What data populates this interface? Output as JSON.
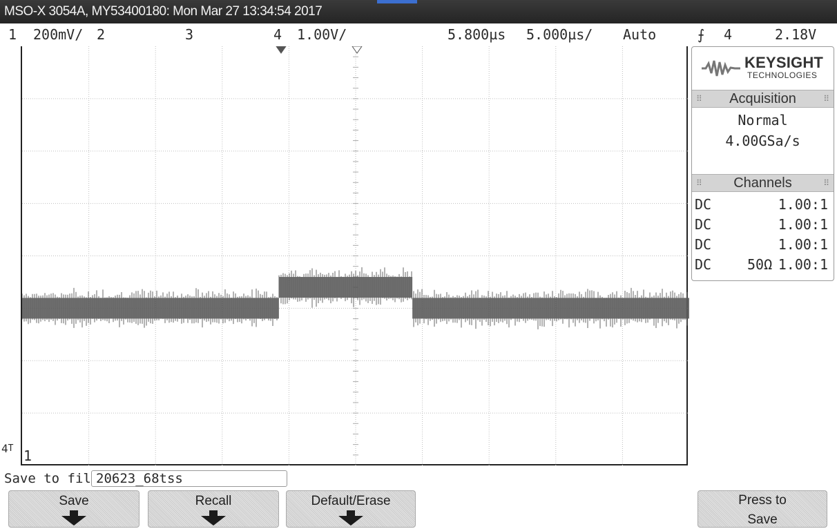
{
  "title_bar": {
    "text": "MSO-X 3054A, MY53400180: Mon Mar 27 13:34:54 2017"
  },
  "status_row": {
    "ch1_label": "1",
    "ch1_scale": "200mV/",
    "ch2_label": "2",
    "ch3_label": "3",
    "ch4_label": "4",
    "ch4_scale": "1.00V/",
    "time_delay": "5.800µs",
    "time_scale": "5.000µs/",
    "trigger_mode": "Auto",
    "trigger_edge_icon": "rising-edge-icon",
    "trigger_source": "4",
    "trigger_level": "2.18V"
  },
  "screen": {
    "ground_marker": "4",
    "channel_marker": "1",
    "trace_color": "#4a4a4a",
    "pulse_level_high_div": 3.4,
    "pulse_level_low_div": 3.0
  },
  "panel": {
    "logo": {
      "brand": "KEYSIGHT",
      "sub": "TECHNOLOGIES",
      "icon": "keysight-wave-icon"
    },
    "acquisition": {
      "header": "Acquisition",
      "mode": "Normal",
      "rate": "4.00GSa/s"
    },
    "channels": {
      "header": "Channels",
      "rows": [
        {
          "coupling": "DC",
          "impedance": "",
          "probe": "1.00:1"
        },
        {
          "coupling": "DC",
          "impedance": "",
          "probe": "1.00:1"
        },
        {
          "coupling": "DC",
          "impedance": "",
          "probe": "1.00:1"
        },
        {
          "coupling": "DC",
          "impedance": "50Ω",
          "probe": "1.00:1"
        }
      ]
    }
  },
  "save": {
    "label": "Save to file =",
    "filename": "20623_68tss"
  },
  "softkeys": {
    "save": "Save",
    "recall": "Recall",
    "default_erase": "Default/Erase",
    "press_to_save_line1": "Press to",
    "press_to_save_line2": "Save"
  }
}
